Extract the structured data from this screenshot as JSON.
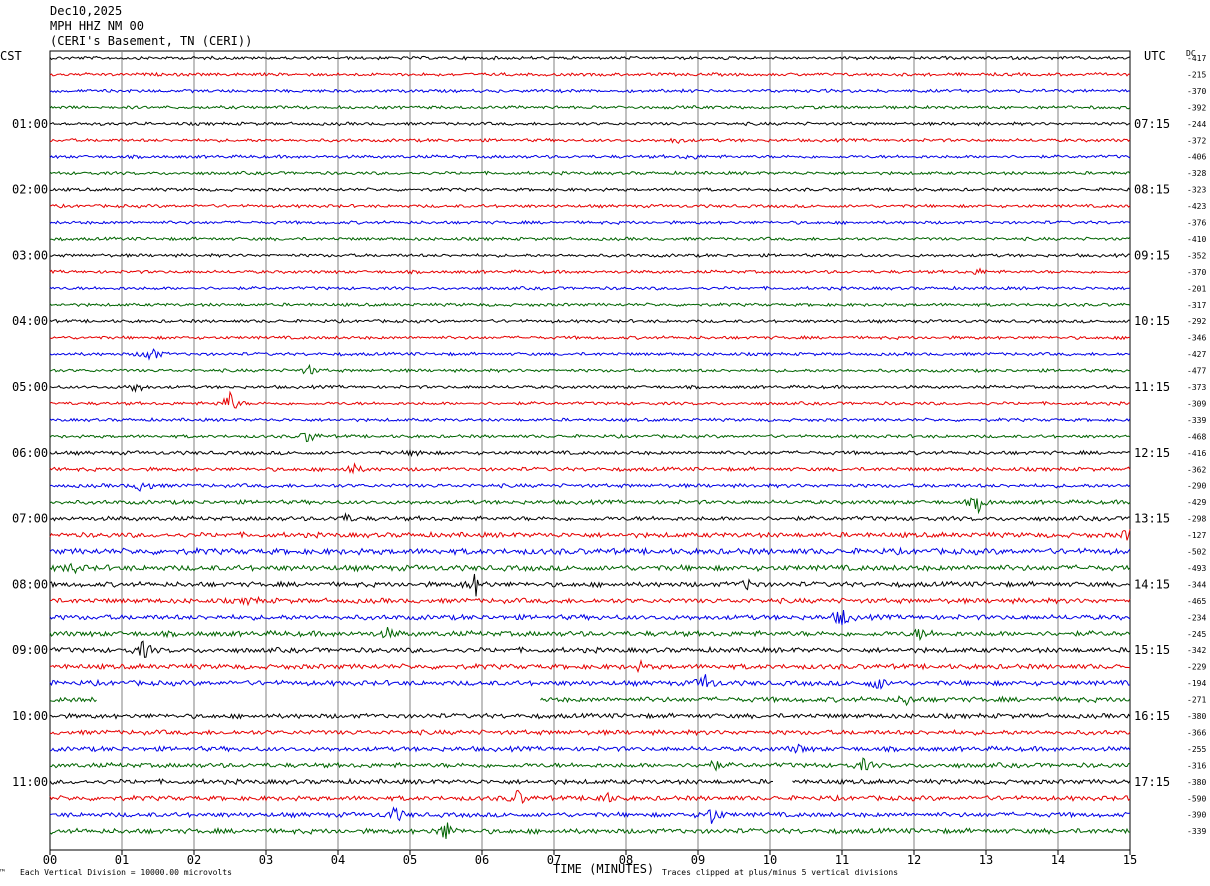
{
  "header": {
    "date": "Dec10,2025",
    "station": "MPH HHZ NM 00",
    "location": "(CERI's Basement, TN (CERI))"
  },
  "left_tz": "CST",
  "right_tz": "UTC",
  "dc_label": "DC",
  "colors": {
    "cycle": [
      "#000000",
      "#e60000",
      "#0000e6",
      "#006400"
    ],
    "grid": "#808080"
  },
  "chart_data": {
    "type": "line",
    "title": "",
    "xlabel": "TIME (MINUTES)",
    "xlim": [
      0,
      15
    ],
    "x_ticks": [
      "00",
      "01",
      "02",
      "03",
      "04",
      "05",
      "06",
      "07",
      "08",
      "09",
      "10",
      "11",
      "12",
      "13",
      "14",
      "15"
    ],
    "rows_per_hour": 4,
    "left_hour_labels": [
      "01:00",
      "02:00",
      "03:00",
      "04:00",
      "05:00",
      "06:00",
      "07:00",
      "08:00",
      "09:00",
      "10:00",
      "11:00"
    ],
    "right_hour_labels": [
      "07:15",
      "08:15",
      "09:15",
      "10:15",
      "11:15",
      "12:15",
      "13:15",
      "14:15",
      "15:15",
      "16:15",
      "17:15"
    ],
    "dc_offsets": [
      "-417",
      "-215",
      "-370",
      "-392",
      "-244",
      "-372",
      "-406",
      "-328",
      "-323",
      "-423",
      "-376",
      "-410",
      "-352",
      "-370",
      "-201",
      "-317",
      "-292",
      "-346",
      "-427",
      "-477",
      "-373",
      "-309",
      "-339",
      "-468",
      "-416",
      "-362",
      "-290",
      "-429",
      "-298",
      "-127",
      "-502",
      "-493",
      "-344",
      "-465",
      "-234",
      "-245",
      "-342",
      "-229",
      "-194",
      "-271",
      "-380",
      "-366",
      "-255",
      "-316",
      "-380",
      "-590",
      "-390",
      "-339"
    ],
    "row_amplitude": [
      1,
      1,
      1,
      1,
      1,
      1,
      1,
      1,
      1,
      1,
      1,
      1,
      1,
      1,
      1,
      1,
      1,
      1,
      1,
      1,
      1,
      1,
      1,
      1,
      1.2,
      1.2,
      1.2,
      1.3,
      1.4,
      1.6,
      1.9,
      1.8,
      1.6,
      1.6,
      1.6,
      1.7,
      1.6,
      1.6,
      1.6,
      1.6,
      1.5,
      1.5,
      1.5,
      1.5,
      1.5,
      1.5,
      1.5,
      1.6
    ],
    "events": [
      {
        "row": 5,
        "minute": 8.7,
        "amp": 3
      },
      {
        "row": 6,
        "minute": 8.9,
        "amp": 3
      },
      {
        "row": 13,
        "minute": 12.9,
        "amp": 3
      },
      {
        "row": 18,
        "minute": 1.4,
        "amp": 10
      },
      {
        "row": 19,
        "minute": 3.6,
        "amp": 5
      },
      {
        "row": 20,
        "minute": 1.2,
        "amp": 6
      },
      {
        "row": 21,
        "minute": 2.5,
        "amp": 12
      },
      {
        "row": 23,
        "minute": 3.6,
        "amp": 8
      },
      {
        "row": 24,
        "minute": 5.1,
        "amp": 4
      },
      {
        "row": 25,
        "minute": 4.2,
        "amp": 6
      },
      {
        "row": 26,
        "minute": 1.3,
        "amp": 8
      },
      {
        "row": 27,
        "minute": 12.9,
        "amp": 9
      },
      {
        "row": 28,
        "minute": 4.1,
        "amp": 4
      },
      {
        "row": 29,
        "minute": 15.0,
        "amp": 8
      },
      {
        "row": 31,
        "minute": 0.3,
        "amp": 5
      },
      {
        "row": 32,
        "minute": 5.9,
        "amp": 12
      },
      {
        "row": 32,
        "minute": 9.7,
        "amp": 5
      },
      {
        "row": 33,
        "minute": 2.8,
        "amp": 4
      },
      {
        "row": 34,
        "minute": 11.0,
        "amp": 10
      },
      {
        "row": 35,
        "minute": 4.7,
        "amp": 5
      },
      {
        "row": 35,
        "minute": 12.1,
        "amp": 6
      },
      {
        "row": 36,
        "minute": 1.3,
        "amp": 9
      },
      {
        "row": 37,
        "minute": 8.2,
        "amp": 4
      },
      {
        "row": 38,
        "minute": 9.1,
        "amp": 9
      },
      {
        "row": 38,
        "minute": 11.5,
        "amp": 7
      },
      {
        "row": 39,
        "minute": 11.9,
        "amp": 5
      },
      {
        "row": 42,
        "minute": 10.4,
        "amp": 4
      },
      {
        "row": 43,
        "minute": 9.2,
        "amp": 6
      },
      {
        "row": 43,
        "minute": 11.3,
        "amp": 6
      },
      {
        "row": 45,
        "minute": 6.5,
        "amp": 8
      },
      {
        "row": 45,
        "minute": 7.7,
        "amp": 7
      },
      {
        "row": 46,
        "minute": 4.8,
        "amp": 8
      },
      {
        "row": 46,
        "minute": 9.2,
        "amp": 10
      },
      {
        "row": 47,
        "minute": 5.5,
        "amp": 10
      }
    ],
    "gaps": [
      {
        "row": 39,
        "from": 0.65,
        "to": 6.8
      },
      {
        "row": 44,
        "from": 10.05,
        "to": 10.3
      }
    ]
  },
  "footer": {
    "scale_note": "Each Vertical Division = 10000.00 microvolts",
    "clip_note": "Traces clipped at plus/minus 5 vertical divisions",
    "corner_mark": "™"
  }
}
